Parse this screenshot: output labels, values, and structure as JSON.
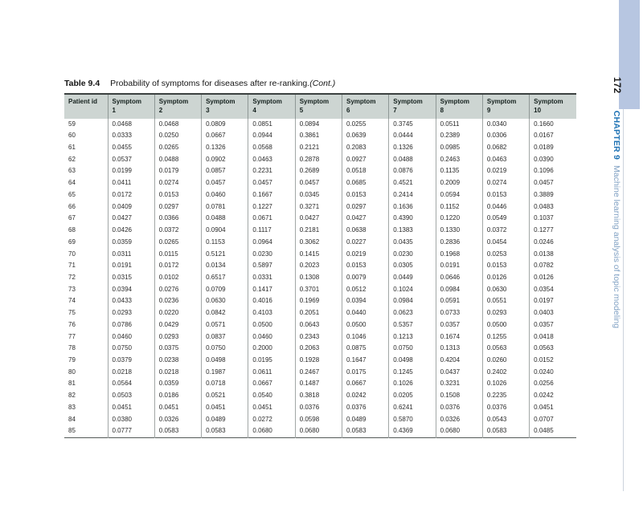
{
  "caption": {
    "label": "Table 9.4",
    "text": "Probability of symptoms for diseases after re-ranking.",
    "cont": "(Cont.)"
  },
  "sidebar": {
    "page_number": "172",
    "chapter_label": "CHAPTER 9",
    "chapter_title": "Machine learning analysis of topic modeling"
  },
  "colors": {
    "accent_bar": "#b7c6e1",
    "chapter_blue": "#1e72b4",
    "chapter_title_blue": "#7e9fc2",
    "header_bg": "#cdd5d2"
  },
  "table": {
    "columns": [
      {
        "line1": "Patient id",
        "line2": ""
      },
      {
        "line1": "Symptom",
        "line2": "1"
      },
      {
        "line1": "Symptom",
        "line2": "2"
      },
      {
        "line1": "Symptom",
        "line2": "3"
      },
      {
        "line1": "Symptom",
        "line2": "4"
      },
      {
        "line1": "Symptom",
        "line2": "5"
      },
      {
        "line1": "Symptom",
        "line2": "6"
      },
      {
        "line1": "Symptom",
        "line2": "7"
      },
      {
        "line1": "Symptom",
        "line2": "8"
      },
      {
        "line1": "Symptom",
        "line2": "9"
      },
      {
        "line1": "Symptom",
        "line2": "10"
      }
    ],
    "rows": [
      [
        "59",
        "0.0468",
        "0.0468",
        "0.0809",
        "0.0851",
        "0.0894",
        "0.0255",
        "0.3745",
        "0.0511",
        "0.0340",
        "0.1660"
      ],
      [
        "60",
        "0.0333",
        "0.0250",
        "0.0667",
        "0.0944",
        "0.3861",
        "0.0639",
        "0.0444",
        "0.2389",
        "0.0306",
        "0.0167"
      ],
      [
        "61",
        "0.0455",
        "0.0265",
        "0.1326",
        "0.0568",
        "0.2121",
        "0.2083",
        "0.1326",
        "0.0985",
        "0.0682",
        "0.0189"
      ],
      [
        "62",
        "0.0537",
        "0.0488",
        "0.0902",
        "0.0463",
        "0.2878",
        "0.0927",
        "0.0488",
        "0.2463",
        "0.0463",
        "0.0390"
      ],
      [
        "63",
        "0.0199",
        "0.0179",
        "0.0857",
        "0.2231",
        "0.2689",
        "0.0518",
        "0.0876",
        "0.1135",
        "0.0219",
        "0.1096"
      ],
      [
        "64",
        "0.0411",
        "0.0274",
        "0.0457",
        "0.0457",
        "0.0457",
        "0.0685",
        "0.4521",
        "0.2009",
        "0.0274",
        "0.0457"
      ],
      [
        "65",
        "0.0172",
        "0.0153",
        "0.0460",
        "0.1667",
        "0.0345",
        "0.0153",
        "0.2414",
        "0.0594",
        "0.0153",
        "0.3889"
      ],
      [
        "66",
        "0.0409",
        "0.0297",
        "0.0781",
        "0.1227",
        "0.3271",
        "0.0297",
        "0.1636",
        "0.1152",
        "0.0446",
        "0.0483"
      ],
      [
        "67",
        "0.0427",
        "0.0366",
        "0.0488",
        "0.0671",
        "0.0427",
        "0.0427",
        "0.4390",
        "0.1220",
        "0.0549",
        "0.1037"
      ],
      [
        "68",
        "0.0426",
        "0.0372",
        "0.0904",
        "0.1117",
        "0.2181",
        "0.0638",
        "0.1383",
        "0.1330",
        "0.0372",
        "0.1277"
      ],
      [
        "69",
        "0.0359",
        "0.0265",
        "0.1153",
        "0.0964",
        "0.3062",
        "0.0227",
        "0.0435",
        "0.2836",
        "0.0454",
        "0.0246"
      ],
      [
        "70",
        "0.0311",
        "0.0115",
        "0.5121",
        "0.0230",
        "0.1415",
        "0.0219",
        "0.0230",
        "0.1968",
        "0.0253",
        "0.0138"
      ],
      [
        "71",
        "0.0191",
        "0.0172",
        "0.0134",
        "0.5897",
        "0.2023",
        "0.0153",
        "0.0305",
        "0.0191",
        "0.0153",
        "0.0782"
      ],
      [
        "72",
        "0.0315",
        "0.0102",
        "0.6517",
        "0.0331",
        "0.1308",
        "0.0079",
        "0.0449",
        "0.0646",
        "0.0126",
        "0.0126"
      ],
      [
        "73",
        "0.0394",
        "0.0276",
        "0.0709",
        "0.1417",
        "0.3701",
        "0.0512",
        "0.1024",
        "0.0984",
        "0.0630",
        "0.0354"
      ],
      [
        "74",
        "0.0433",
        "0.0236",
        "0.0630",
        "0.4016",
        "0.1969",
        "0.0394",
        "0.0984",
        "0.0591",
        "0.0551",
        "0.0197"
      ],
      [
        "75",
        "0.0293",
        "0.0220",
        "0.0842",
        "0.4103",
        "0.2051",
        "0.0440",
        "0.0623",
        "0.0733",
        "0.0293",
        "0.0403"
      ],
      [
        "76",
        "0.0786",
        "0.0429",
        "0.0571",
        "0.0500",
        "0.0643",
        "0.0500",
        "0.5357",
        "0.0357",
        "0.0500",
        "0.0357"
      ],
      [
        "77",
        "0.0460",
        "0.0293",
        "0.0837",
        "0.0460",
        "0.2343",
        "0.1046",
        "0.1213",
        "0.1674",
        "0.1255",
        "0.0418"
      ],
      [
        "78",
        "0.0750",
        "0.0375",
        "0.0750",
        "0.2000",
        "0.2063",
        "0.0875",
        "0.0750",
        "0.1313",
        "0.0563",
        "0.0563"
      ],
      [
        "79",
        "0.0379",
        "0.0238",
        "0.0498",
        "0.0195",
        "0.1928",
        "0.1647",
        "0.0498",
        "0.4204",
        "0.0260",
        "0.0152"
      ],
      [
        "80",
        "0.0218",
        "0.0218",
        "0.1987",
        "0.0611",
        "0.2467",
        "0.0175",
        "0.1245",
        "0.0437",
        "0.2402",
        "0.0240"
      ],
      [
        "81",
        "0.0564",
        "0.0359",
        "0.0718",
        "0.0667",
        "0.1487",
        "0.0667",
        "0.1026",
        "0.3231",
        "0.1026",
        "0.0256"
      ],
      [
        "82",
        "0.0503",
        "0.0186",
        "0.0521",
        "0.0540",
        "0.3818",
        "0.0242",
        "0.0205",
        "0.1508",
        "0.2235",
        "0.0242"
      ],
      [
        "83",
        "0.0451",
        "0.0451",
        "0.0451",
        "0.0451",
        "0.0376",
        "0.0376",
        "0.6241",
        "0.0376",
        "0.0376",
        "0.0451"
      ],
      [
        "84",
        "0.0380",
        "0.0326",
        "0.0489",
        "0.0272",
        "0.0598",
        "0.0489",
        "0.5870",
        "0.0326",
        "0.0543",
        "0.0707"
      ],
      [
        "85",
        "0.0777",
        "0.0583",
        "0.0583",
        "0.0680",
        "0.0680",
        "0.0583",
        "0.4369",
        "0.0680",
        "0.0583",
        "0.0485"
      ]
    ]
  }
}
